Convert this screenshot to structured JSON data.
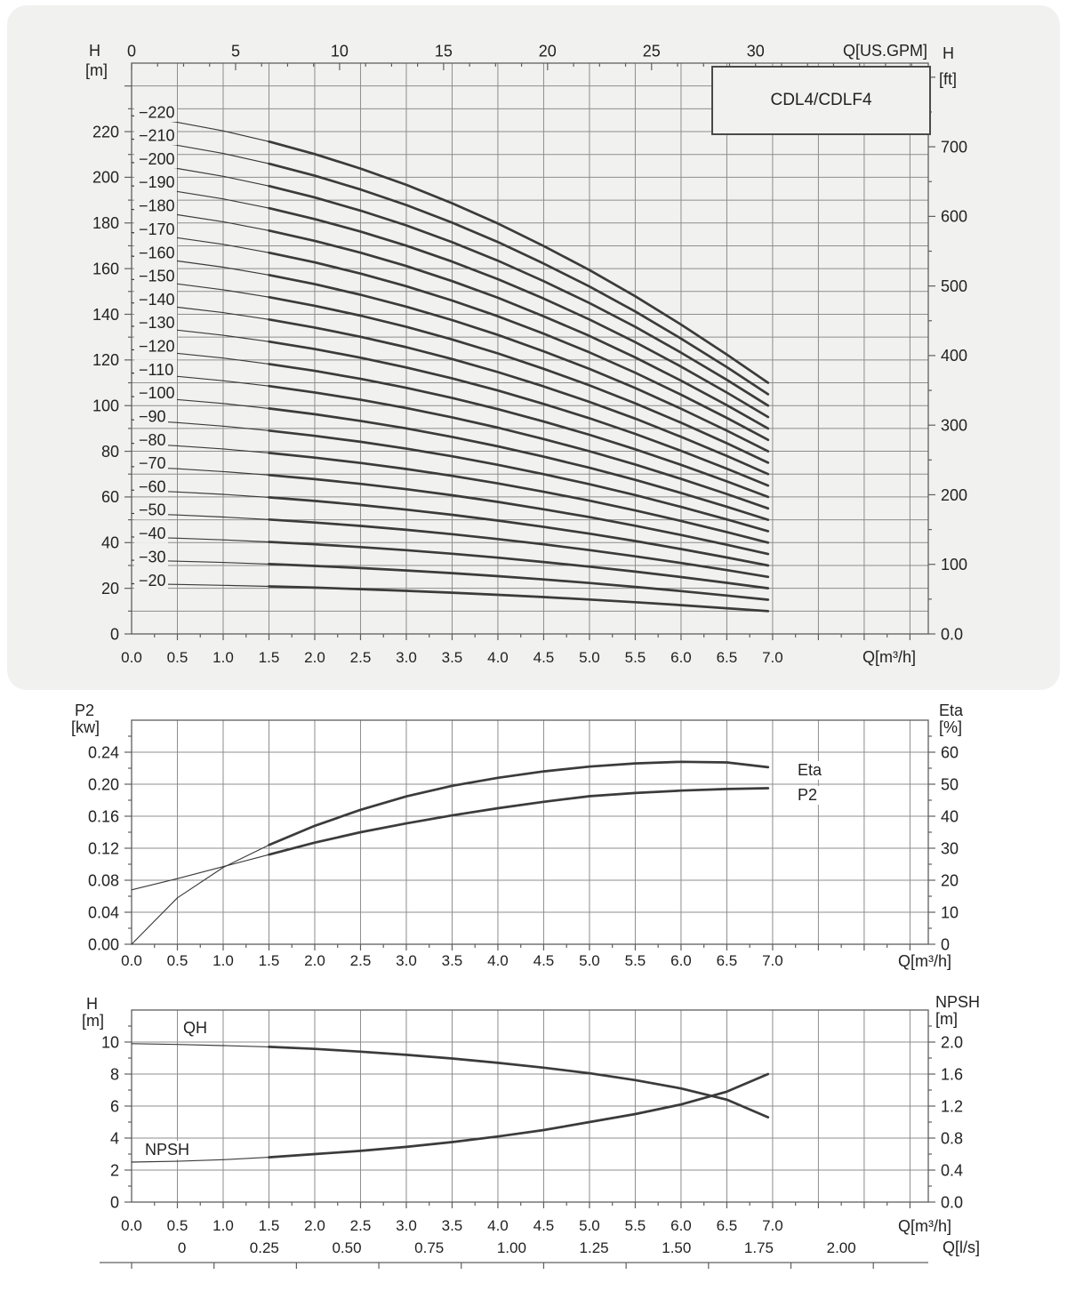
{
  "colors": {
    "page_bg": "#ffffff",
    "card_bg": "#f1f1ef",
    "grid": "#8d8d8d",
    "frame": "#5f5f5f",
    "curve": "#3b3b3b",
    "text": "#222222"
  },
  "model": {
    "label": "CDL4/CDLF4"
  },
  "labels": {
    "h": "H",
    "m_br": "[m]",
    "ft_br": "[ft]",
    "kw_br": "[kw]",
    "pct_br": "[%]",
    "q_gpm": "Q[US.GPM]",
    "q_m3h": "Q[m³/h]",
    "q_ls": "Q[l/s]",
    "p2": "P2",
    "eta": "Eta",
    "qh": "QH",
    "npsh": "NPSH"
  },
  "chart_data": [
    {
      "id": "head-curves",
      "type": "line",
      "title": "CDL4/CDLF4",
      "x": {
        "label": "Q[m³/h]",
        "min": 0,
        "max": 8.7,
        "tick_step": 0.5,
        "tick_max": 7.0,
        "minor_step": 0.25
      },
      "x_top": {
        "label": "Q[US.GPM]",
        "ticks": [
          0,
          5,
          10,
          15,
          20,
          25,
          30
        ],
        "minor_step": 1.25,
        "m3h_per_gpm": 0.22712
      },
      "y": {
        "label": "H [m]",
        "min": 0,
        "max": 250,
        "grid_step": 10,
        "tick_step": 20,
        "tick_max": 220
      },
      "y_right": {
        "label": "H [ft]",
        "tick_values": [
          0,
          100,
          200,
          300,
          400,
          500,
          600,
          700
        ],
        "tick_labels": [
          "0.0",
          "100",
          "200",
          "300",
          "400",
          "500",
          "600",
          "700"
        ],
        "minor_step": 50,
        "minor_max": 800,
        "m_per_ft": 0.3048
      },
      "q_stops": [
        0,
        0.5,
        1.0,
        1.5,
        2.0,
        2.5,
        3.0,
        3.5,
        4.0,
        4.5,
        5.0,
        5.5,
        6.0,
        6.5,
        6.95
      ],
      "droop_fraction": [
        0,
        0.025,
        0.057,
        0.097,
        0.144,
        0.198,
        0.259,
        0.328,
        0.404,
        0.488,
        0.578,
        0.676,
        0.782,
        0.894,
        1.0
      ],
      "bold_from": 1.5,
      "curves": [
        {
          "label": "−20",
          "head_at_0": 22.0,
          "head_at_end": 10
        },
        {
          "label": "−30",
          "head_at_0": 32.3,
          "head_at_end": 15
        },
        {
          "label": "−40",
          "head_at_0": 42.5,
          "head_at_end": 20
        },
        {
          "label": "−50",
          "head_at_0": 52.8,
          "head_at_end": 25
        },
        {
          "label": "−60",
          "head_at_0": 63.0,
          "head_at_end": 30
        },
        {
          "label": "−70",
          "head_at_0": 73.3,
          "head_at_end": 35
        },
        {
          "label": "−80",
          "head_at_0": 83.5,
          "head_at_end": 40
        },
        {
          "label": "−90",
          "head_at_0": 93.8,
          "head_at_end": 45
        },
        {
          "label": "−100",
          "head_at_0": 104.0,
          "head_at_end": 50
        },
        {
          "label": "−110",
          "head_at_0": 114.3,
          "head_at_end": 55
        },
        {
          "label": "−120",
          "head_at_0": 124.5,
          "head_at_end": 60
        },
        {
          "label": "−130",
          "head_at_0": 134.8,
          "head_at_end": 65
        },
        {
          "label": "−140",
          "head_at_0": 145.0,
          "head_at_end": 70
        },
        {
          "label": "−150",
          "head_at_0": 155.3,
          "head_at_end": 75
        },
        {
          "label": "−160",
          "head_at_0": 165.5,
          "head_at_end": 80
        },
        {
          "label": "−170",
          "head_at_0": 175.8,
          "head_at_end": 85
        },
        {
          "label": "−180",
          "head_at_0": 186.0,
          "head_at_end": 90
        },
        {
          "label": "−190",
          "head_at_0": 196.3,
          "head_at_end": 95
        },
        {
          "label": "−200",
          "head_at_0": 206.5,
          "head_at_end": 100
        },
        {
          "label": "−210",
          "head_at_0": 216.8,
          "head_at_end": 105
        },
        {
          "label": "−220",
          "head_at_0": 227.0,
          "head_at_end": 110
        }
      ]
    },
    {
      "id": "power-efficiency",
      "type": "line",
      "x": {
        "label": "Q[m³/h]",
        "min": 0,
        "max": 8.7,
        "tick_step": 0.5,
        "tick_max": 7.0,
        "minor_step": 0.25
      },
      "y": {
        "label": "P2 [kw]",
        "min": 0,
        "max": 0.28,
        "tick_step": 0.04,
        "tick_max": 0.24,
        "minor_step": 0.02
      },
      "y_right": {
        "label": "Eta [%]",
        "min": 0,
        "max": 70,
        "tick_step": 10,
        "tick_max": 60,
        "minor_step": 5
      },
      "q_stops": [
        0,
        0.5,
        1.0,
        1.5,
        2.0,
        2.5,
        3.0,
        3.5,
        4.0,
        4.5,
        5.0,
        5.5,
        6.0,
        6.5,
        6.95
      ],
      "bold_from": 1.5,
      "series": [
        {
          "name": "P2",
          "axis": "left",
          "values": [
            0.068,
            0.082,
            0.097,
            0.112,
            0.127,
            0.14,
            0.151,
            0.161,
            0.17,
            0.178,
            0.185,
            0.189,
            0.192,
            0.194,
            0.195
          ]
        },
        {
          "name": "Eta",
          "axis": "right",
          "values": [
            0,
            14.5,
            24,
            31,
            37,
            42,
            46.2,
            49.5,
            52,
            54,
            55.5,
            56.5,
            57,
            56.8,
            55.3
          ]
        }
      ]
    },
    {
      "id": "qh-npsh",
      "type": "line",
      "x": {
        "label": "Q[m³/h]",
        "min": 0,
        "max": 8.7,
        "tick_step": 0.5,
        "tick_max": 7.0,
        "minor_step": 0.25
      },
      "x2": {
        "label": "Q[l/s]",
        "tick_values_ls": [
          0,
          0.25,
          0.5,
          0.75,
          1.0,
          1.25,
          1.5,
          1.75,
          2.0
        ],
        "tick_labels": [
          "0",
          "0.25",
          "0.50",
          "0.75",
          "1.00",
          "1.25",
          "1.50",
          "1.75",
          "2.00"
        ],
        "m3h_per_ls": 3.6,
        "label_offset_m3h": 0.55
      },
      "y": {
        "label": "H [m]",
        "min": 0,
        "max": 12,
        "tick_step": 2,
        "tick_max": 10,
        "minor_step": 1
      },
      "y_right": {
        "label": "NPSH [m]",
        "min": 0,
        "max": 2.4,
        "tick_step": 0.4,
        "tick_max": 2.0,
        "minor_step": 0.2
      },
      "q_stops": [
        0,
        0.5,
        1.0,
        1.5,
        2.0,
        2.5,
        3.0,
        3.5,
        4.0,
        4.5,
        5.0,
        5.5,
        6.0,
        6.5,
        6.95
      ],
      "bold_from": 1.5,
      "series": [
        {
          "name": "QH",
          "axis": "left",
          "values": [
            9.9,
            9.85,
            9.78,
            9.7,
            9.57,
            9.4,
            9.2,
            8.97,
            8.7,
            8.4,
            8.05,
            7.62,
            7.1,
            6.4,
            5.3
          ]
        },
        {
          "name": "NPSH",
          "axis": "right",
          "values": [
            0.5,
            0.51,
            0.53,
            0.56,
            0.6,
            0.64,
            0.69,
            0.75,
            0.82,
            0.9,
            1.0,
            1.1,
            1.22,
            1.38,
            1.6
          ]
        }
      ]
    }
  ]
}
